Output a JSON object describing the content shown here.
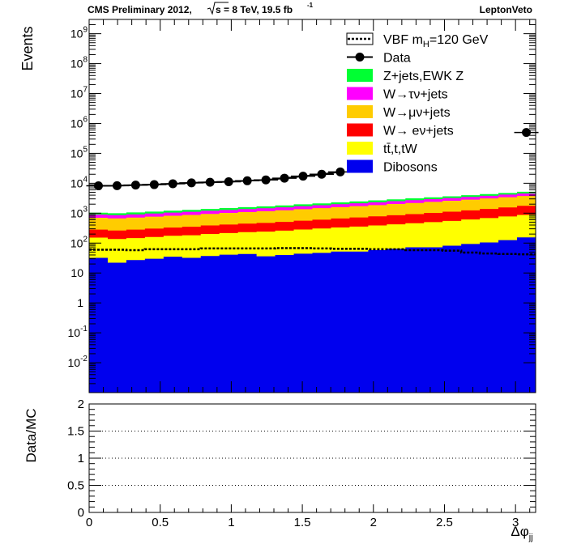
{
  "header": {
    "left_prefix": "CMS Preliminary 2012,",
    "sqrt_s": "s = 8 TeV, 19.5 fb",
    "lumi_exp": "-1",
    "right": "LeptonVeto"
  },
  "colors": {
    "zjets": "#00ff33",
    "wtau": "#ff00ff",
    "wmu": "#ffcc00",
    "we": "#ff0000",
    "top": "#ffff00",
    "diboson": "#0000ee",
    "data": "#000000"
  },
  "chart_data": [
    {
      "type": "area",
      "panel": "main",
      "ylabel": "Events",
      "xlabel": "",
      "xlim": [
        0,
        3.1416
      ],
      "ylim": [
        0.001,
        3000000000
      ],
      "yscale": "log",
      "ytick_labels": [
        "10^-2",
        "10^-1",
        "1",
        "10",
        "10^2",
        "10^3",
        "10^4",
        "10^5",
        "10^6",
        "10^7",
        "10^8",
        "10^9"
      ],
      "ytick_values": [
        0.01,
        0.1,
        1,
        10,
        100,
        1000,
        10000,
        100000,
        1000000,
        10000000,
        100000000,
        1000000000
      ],
      "legend_position": "top-right",
      "bins": [
        0,
        0.1309,
        0.2618,
        0.3927,
        0.5236,
        0.6545,
        0.7854,
        0.9163,
        1.0472,
        1.1781,
        1.309,
        1.4399,
        1.5708,
        1.7017,
        1.8326,
        1.9635,
        2.0944,
        2.2253,
        2.3562,
        2.4871,
        2.618,
        2.7489,
        2.8798,
        3.0107,
        3.1416
      ],
      "stack": [
        {
          "name": "Dibosons",
          "color_key": "diboson",
          "values": [
            32,
            22,
            27,
            30,
            35,
            32,
            37,
            41,
            43,
            36,
            40,
            44,
            47,
            52,
            52,
            58,
            64,
            72,
            72,
            82,
            93,
            105,
            125,
            155
          ]
        },
        {
          "name": "tt̄,t,tW",
          "color_key": "top",
          "values": [
            120,
            115,
            120,
            130,
            140,
            150,
            165,
            175,
            190,
            205,
            220,
            240,
            260,
            280,
            305,
            330,
            360,
            390,
            430,
            470,
            520,
            580,
            650,
            720
          ]
        },
        {
          "name": "W→ eν+jets",
          "color_key": "we",
          "values": [
            130,
            125,
            135,
            145,
            155,
            170,
            185,
            200,
            215,
            230,
            250,
            275,
            300,
            330,
            360,
            395,
            430,
            470,
            520,
            570,
            630,
            700,
            780,
            880
          ]
        },
        {
          "name": "W→μν+jets",
          "color_key": "wmu",
          "values": [
            420,
            410,
            430,
            460,
            490,
            520,
            560,
            600,
            640,
            690,
            740,
            800,
            860,
            930,
            1000,
            1080,
            1170,
            1260,
            1360,
            1470,
            1590,
            1720,
            1860,
            2000
          ]
        },
        {
          "name": "W→τν+jets",
          "color_key": "wtau",
          "values": [
            190,
            185,
            195,
            205,
            220,
            235,
            250,
            265,
            280,
            300,
            320,
            345,
            370,
            395,
            425,
            455,
            490,
            525,
            565,
            610,
            655,
            700,
            750,
            800
          ]
        },
        {
          "name": "Z+jets,EWK Z",
          "color_key": "zjets",
          "values": [
            140,
            140,
            150,
            160,
            170,
            180,
            190,
            205,
            220,
            235,
            250,
            270,
            290,
            310,
            330,
            355,
            380,
            410,
            440,
            470,
            505,
            540,
            580,
            620
          ]
        }
      ],
      "signal": {
        "name": "VBF m_H=120 GeV",
        "values": [
          60,
          60,
          58,
          62,
          62,
          62,
          66,
          66,
          66,
          66,
          68,
          68,
          66,
          64,
          64,
          62,
          62,
          58,
          58,
          56,
          48,
          45,
          43,
          42
        ]
      },
      "data": {
        "name": "Data",
        "x": [
          0.0654,
          0.1963,
          0.3272,
          0.4581,
          0.589,
          0.7199,
          0.8508,
          0.9817,
          1.1126,
          1.2435,
          1.3744,
          1.5053,
          1.6362,
          1.7671,
          3.0762
        ],
        "y": [
          8200,
          8300,
          8700,
          9000,
          9600,
          10300,
          10800,
          11200,
          12100,
          12900,
          14800,
          17200,
          20000,
          24000,
          500000
        ]
      },
      "legend": [
        "VBF m_H=120 GeV",
        "Data",
        "Z+jets,EWK Z",
        "W→τν+jets",
        "W→μν+jets",
        "W→ eν+jets",
        "tt̄,t,tW",
        "Dibosons"
      ]
    },
    {
      "type": "line",
      "panel": "ratio",
      "ylabel": "Data/MC",
      "xlabel": "Δφ_jj",
      "xlim": [
        0,
        3.1416
      ],
      "ylim": [
        0,
        2
      ],
      "xtick_labels": [
        "0",
        "0.5",
        "1",
        "1.5",
        "2",
        "2.5",
        "3"
      ],
      "xtick_values": [
        0,
        0.5,
        1,
        1.5,
        2,
        2.5,
        3
      ],
      "ytick_labels": [
        "0",
        "0.5",
        "1",
        "1.5",
        "2"
      ],
      "ytick_values": [
        0,
        0.5,
        1,
        1.5,
        2
      ],
      "grid_lines_dotted": [
        0.5,
        1,
        1.5
      ]
    }
  ]
}
